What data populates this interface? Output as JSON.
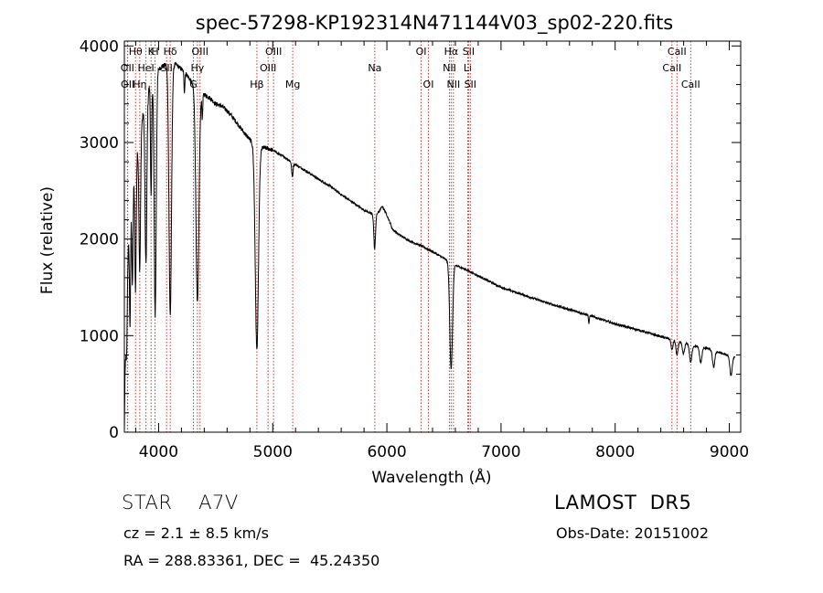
{
  "chart_data": {
    "type": "line",
    "title": "spec-57298-KP192314N471144V03_sp02-220.fits",
    "xlabel": "Wavelength (Å)",
    "ylabel": "Flux (relative)",
    "xlim": [
      3700,
      9100
    ],
    "ylim": [
      0,
      4050
    ],
    "xticks": [
      4000,
      5000,
      6000,
      7000,
      8000,
      9000
    ],
    "yticks": [
      0,
      1000,
      2000,
      3000,
      4000
    ],
    "grid": false,
    "continuum": [
      [
        3700,
        0
      ],
      [
        3705,
        500
      ],
      [
        3720,
        1500
      ],
      [
        3750,
        2300
      ],
      [
        3800,
        2800
      ],
      [
        3850,
        3200
      ],
      [
        3900,
        3500
      ],
      [
        3950,
        3680
      ],
      [
        4000,
        3760
      ],
      [
        4050,
        3800
      ],
      [
        4100,
        3820
      ],
      [
        4150,
        3810
      ],
      [
        4200,
        3760
      ],
      [
        4250,
        3700
      ],
      [
        4300,
        3600
      ],
      [
        4350,
        3520
      ],
      [
        4400,
        3500
      ],
      [
        4450,
        3460
      ],
      [
        4500,
        3400
      ],
      [
        4550,
        3380
      ],
      [
        4600,
        3330
      ],
      [
        4650,
        3260
      ],
      [
        4700,
        3180
      ],
      [
        4750,
        3100
      ],
      [
        4800,
        3030
      ],
      [
        4850,
        2960
      ],
      [
        4900,
        2950
      ],
      [
        4950,
        2940
      ],
      [
        5000,
        2920
      ],
      [
        5100,
        2850
      ],
      [
        5200,
        2770
      ],
      [
        5300,
        2700
      ],
      [
        5400,
        2620
      ],
      [
        5500,
        2550
      ],
      [
        5600,
        2460
      ],
      [
        5700,
        2380
      ],
      [
        5800,
        2300
      ],
      [
        5850,
        2270
      ],
      [
        5900,
        2240
      ],
      [
        5940,
        2300
      ],
      [
        5960,
        2340
      ],
      [
        6000,
        2250
      ],
      [
        6050,
        2100
      ],
      [
        6100,
        2050
      ],
      [
        6200,
        1980
      ],
      [
        6300,
        1930
      ],
      [
        6400,
        1870
      ],
      [
        6500,
        1800
      ],
      [
        6600,
        1730
      ],
      [
        6700,
        1680
      ],
      [
        6800,
        1620
      ],
      [
        6900,
        1560
      ],
      [
        7000,
        1500
      ],
      [
        7200,
        1420
      ],
      [
        7400,
        1340
      ],
      [
        7600,
        1270
      ],
      [
        7800,
        1200
      ],
      [
        8000,
        1120
      ],
      [
        8200,
        1060
      ],
      [
        8400,
        990
      ],
      [
        8500,
        960
      ],
      [
        8600,
        930
      ],
      [
        8700,
        890
      ],
      [
        8800,
        870
      ],
      [
        8900,
        830
      ],
      [
        9000,
        790
      ],
      [
        9050,
        780
      ]
    ],
    "absorption_lines": [
      {
        "center": 3720,
        "depth": 700,
        "width": 5
      },
      {
        "center": 3750,
        "depth": 1200,
        "width": 5
      },
      {
        "center": 3771,
        "depth": 1000,
        "width": 5
      },
      {
        "center": 3798,
        "depth": 1300,
        "width": 6
      },
      {
        "center": 3835,
        "depth": 1400,
        "width": 7
      },
      {
        "center": 3889,
        "depth": 1700,
        "width": 8
      },
      {
        "center": 3934,
        "depth": 1200,
        "width": 5
      },
      {
        "center": 3970,
        "depth": 2500,
        "width": 9
      },
      {
        "center": 4102,
        "depth": 2600,
        "width": 11
      },
      {
        "center": 4226,
        "depth": 200,
        "width": 4
      },
      {
        "center": 4340,
        "depth": 2200,
        "width": 13
      },
      {
        "center": 4383,
        "depth": 250,
        "width": 4
      },
      {
        "center": 4861,
        "depth": 2100,
        "width": 14
      },
      {
        "center": 5172,
        "depth": 150,
        "width": 6
      },
      {
        "center": 5893,
        "depth": 350,
        "width": 7
      },
      {
        "center": 6563,
        "depth": 1100,
        "width": 12
      },
      {
        "center": 7770,
        "depth": 80,
        "width": 4
      },
      {
        "center": 8498,
        "depth": 110,
        "width": 8
      },
      {
        "center": 8542,
        "depth": 150,
        "width": 9
      },
      {
        "center": 8598,
        "depth": 120,
        "width": 10
      },
      {
        "center": 8662,
        "depth": 180,
        "width": 10
      },
      {
        "center": 8750,
        "depth": 160,
        "width": 10
      },
      {
        "center": 8863,
        "depth": 170,
        "width": 10
      },
      {
        "center": 9015,
        "depth": 200,
        "width": 10
      }
    ],
    "line_markers": [
      {
        "label": "Hθ",
        "x": 3798,
        "row": 0
      },
      {
        "label": "OII",
        "x": 3727,
        "row": 1
      },
      {
        "label": "OII",
        "x": 3729,
        "row": 2
      },
      {
        "label": "Hη",
        "x": 3835,
        "row": 2
      },
      {
        "label": "HeI",
        "x": 3889,
        "row": 1
      },
      {
        "label": "K",
        "x": 3934,
        "row": 0
      },
      {
        "label": "H",
        "x": 3969,
        "row": 0
      },
      {
        "label": "SII",
        "x": 4070,
        "row": 1
      },
      {
        "label": "Hδ",
        "x": 4102,
        "row": 0
      },
      {
        "label": "G",
        "x": 4305,
        "row": 2
      },
      {
        "label": "OIII",
        "x": 4363,
        "row": 0
      },
      {
        "label": "Hγ",
        "x": 4340,
        "row": 1
      },
      {
        "label": "Hβ",
        "x": 4861,
        "row": 2
      },
      {
        "label": "OIII",
        "x": 4959,
        "row": 1
      },
      {
        "label": "OIII",
        "x": 5007,
        "row": 0
      },
      {
        "label": "Mg",
        "x": 5175,
        "row": 2
      },
      {
        "label": "Na",
        "x": 5894,
        "row": 1
      },
      {
        "label": "OI",
        "x": 6300,
        "row": 0
      },
      {
        "label": "OI",
        "x": 6364,
        "row": 2
      },
      {
        "label": "NII",
        "x": 6548,
        "row": 1
      },
      {
        "label": "Hα",
        "x": 6563,
        "row": 0
      },
      {
        "label": "NII",
        "x": 6583,
        "row": 2
      },
      {
        "label": "SII",
        "x": 6716,
        "row": 0
      },
      {
        "label": "Li",
        "x": 6708,
        "row": 1
      },
      {
        "label": "SII",
        "x": 6731,
        "row": 2
      },
      {
        "label": "CaII",
        "x": 8498,
        "row": 1
      },
      {
        "label": "CaII",
        "x": 8542,
        "row": 0
      },
      {
        "label": "CaII",
        "x": 8662,
        "row": 2
      }
    ]
  },
  "footer": {
    "object_line": "STAR    A7V",
    "survey": "LAMOST  DR5",
    "cz_line": "cz = 2.1 ± 8.5 km/s",
    "obs_date": "Obs-Date: 20151002",
    "radec_line": "RA = 288.83361, DEC =  45.24350"
  },
  "colors": {
    "spectrum": "#000000",
    "marker_line": "#cc3333",
    "axes": "#000000",
    "background": "#ffffff"
  }
}
